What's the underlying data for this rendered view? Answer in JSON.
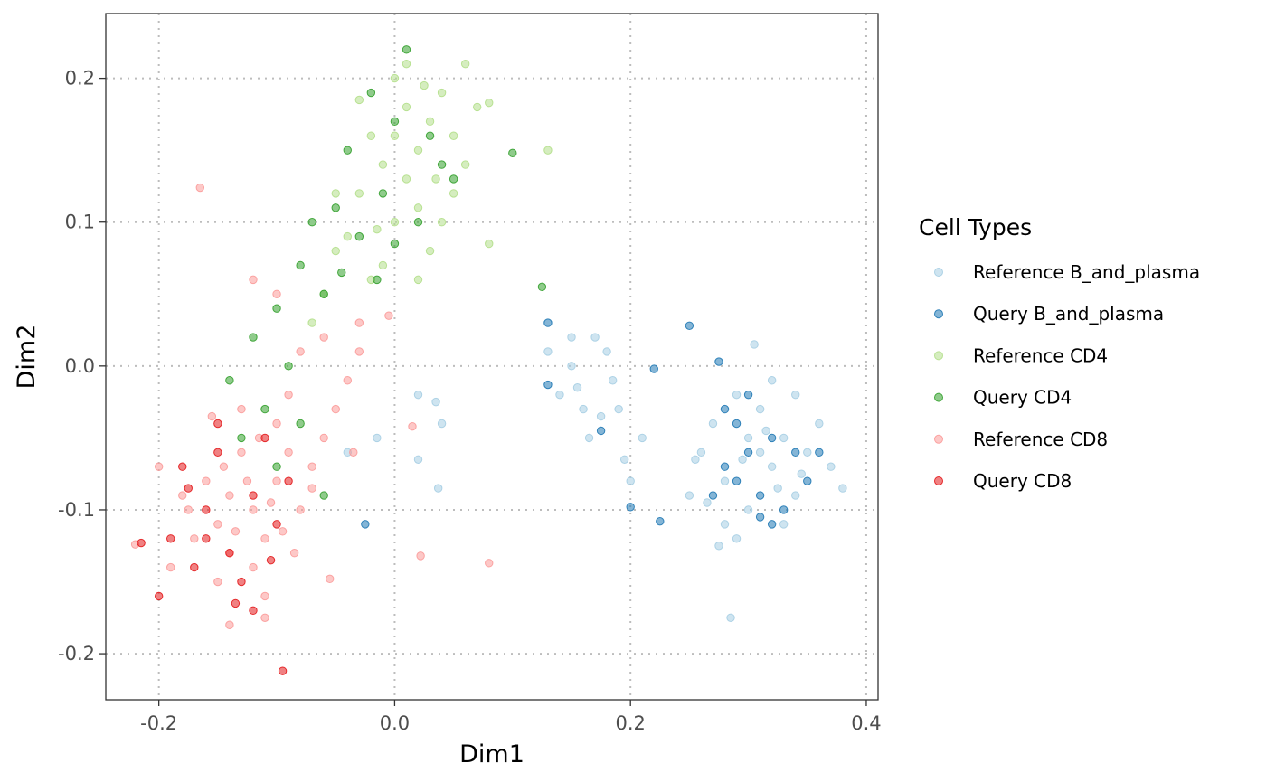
{
  "chart_data": {
    "type": "scatter",
    "title": "",
    "xlabel": "Dim1",
    "ylabel": "Dim2",
    "xlim": [
      -0.245,
      0.41
    ],
    "ylim": [
      -0.232,
      0.245
    ],
    "x_ticks": [
      -0.2,
      0.0,
      0.2,
      0.4
    ],
    "x_tick_labels": [
      "-0.2",
      "0.0",
      "0.2",
      "0.4"
    ],
    "y_ticks": [
      -0.2,
      -0.1,
      0.0,
      0.1,
      0.2
    ],
    "y_tick_labels": [
      "-0.2",
      "-0.1",
      "0.0",
      "0.1",
      "0.2"
    ],
    "grid": true,
    "legend": {
      "title": "Cell Types",
      "position": "right"
    },
    "series": [
      {
        "name": "Reference B_and_plasma",
        "color": "#a6cee3",
        "points": [
          [
            0.29,
            -0.02
          ],
          [
            0.3,
            -0.05
          ],
          [
            0.31,
            -0.06
          ],
          [
            0.32,
            -0.07
          ],
          [
            0.33,
            -0.05
          ],
          [
            0.28,
            -0.08
          ],
          [
            0.34,
            -0.09
          ],
          [
            0.35,
            -0.06
          ],
          [
            0.27,
            -0.04
          ],
          [
            0.3,
            -0.1
          ],
          [
            0.31,
            -0.03
          ],
          [
            0.36,
            -0.04
          ],
          [
            0.26,
            -0.06
          ],
          [
            0.33,
            -0.11
          ],
          [
            0.29,
            -0.12
          ],
          [
            0.37,
            -0.07
          ],
          [
            0.32,
            -0.01
          ],
          [
            0.25,
            -0.09
          ],
          [
            0.34,
            -0.02
          ],
          [
            0.28,
            -0.11
          ],
          [
            0.305,
            0.015
          ],
          [
            0.38,
            -0.085
          ],
          [
            0.285,
            -0.175
          ],
          [
            0.275,
            -0.125
          ],
          [
            0.255,
            -0.065
          ],
          [
            0.315,
            -0.045
          ],
          [
            0.325,
            -0.085
          ],
          [
            0.295,
            -0.065
          ],
          [
            0.345,
            -0.075
          ],
          [
            0.265,
            -0.095
          ],
          [
            0.15,
            0.0
          ],
          [
            0.17,
            0.02
          ],
          [
            0.16,
            -0.03
          ],
          [
            0.19,
            -0.03
          ],
          [
            0.14,
            -0.02
          ],
          [
            0.18,
            0.01
          ],
          [
            0.2,
            -0.08
          ],
          [
            0.21,
            -0.05
          ],
          [
            0.13,
            0.01
          ],
          [
            0.165,
            -0.05
          ],
          [
            0.15,
            0.02
          ],
          [
            0.175,
            -0.035
          ],
          [
            0.185,
            -0.01
          ],
          [
            0.155,
            -0.015
          ],
          [
            0.195,
            -0.065
          ],
          [
            0.02,
            -0.02
          ],
          [
            0.035,
            -0.025
          ],
          [
            0.04,
            -0.04
          ],
          [
            0.02,
            -0.065
          ],
          [
            0.037,
            -0.085
          ],
          [
            -0.015,
            -0.05
          ],
          [
            -0.04,
            -0.06
          ]
        ]
      },
      {
        "name": "Query B_and_plasma",
        "color": "#1f78b4",
        "points": [
          [
            0.3,
            -0.06
          ],
          [
            0.31,
            -0.09
          ],
          [
            0.32,
            -0.05
          ],
          [
            0.29,
            -0.04
          ],
          [
            0.28,
            -0.07
          ],
          [
            0.33,
            -0.1
          ],
          [
            0.35,
            -0.08
          ],
          [
            0.27,
            -0.09
          ],
          [
            0.3,
            -0.02
          ],
          [
            0.34,
            -0.06
          ],
          [
            0.32,
            -0.11
          ],
          [
            0.36,
            -0.06
          ],
          [
            0.28,
            -0.03
          ],
          [
            0.31,
            -0.105
          ],
          [
            0.29,
            -0.08
          ],
          [
            0.13,
            0.03
          ],
          [
            0.25,
            0.028
          ],
          [
            0.22,
            -0.002
          ],
          [
            0.175,
            -0.045
          ],
          [
            0.2,
            -0.098
          ],
          [
            0.225,
            -0.108
          ],
          [
            0.13,
            -0.013
          ],
          [
            -0.025,
            -0.11
          ],
          [
            0.275,
            0.003
          ]
        ]
      },
      {
        "name": "Reference CD4",
        "color": "#b2df8a",
        "points": [
          [
            0.0,
            0.2
          ],
          [
            0.01,
            0.18
          ],
          [
            -0.02,
            0.16
          ],
          [
            0.02,
            0.15
          ],
          [
            -0.01,
            0.14
          ],
          [
            0.03,
            0.17
          ],
          [
            0.04,
            0.19
          ],
          [
            -0.03,
            0.12
          ],
          [
            0.05,
            0.16
          ],
          [
            0.0,
            0.1
          ],
          [
            -0.04,
            0.09
          ],
          [
            0.02,
            0.11
          ],
          [
            0.06,
            0.14
          ],
          [
            -0.05,
            0.08
          ],
          [
            0.01,
            0.13
          ],
          [
            0.07,
            0.18
          ],
          [
            -0.02,
            0.06
          ],
          [
            0.03,
            0.08
          ],
          [
            -0.06,
            0.05
          ],
          [
            0.05,
            0.12
          ],
          [
            0.08,
            0.085
          ],
          [
            0.13,
            0.15
          ],
          [
            0.01,
            0.21
          ],
          [
            -0.07,
            0.03
          ],
          [
            0.02,
            0.06
          ],
          [
            0.04,
            0.1
          ],
          [
            -0.01,
            0.07
          ],
          [
            0.06,
            0.21
          ],
          [
            0.08,
            0.183
          ],
          [
            -0.03,
            0.185
          ],
          [
            -0.05,
            0.12
          ],
          [
            0.0,
            0.16
          ],
          [
            0.035,
            0.13
          ],
          [
            -0.015,
            0.095
          ],
          [
            0.025,
            0.195
          ]
        ]
      },
      {
        "name": "Query CD4",
        "color": "#33a02c",
        "points": [
          [
            0.01,
            0.22
          ],
          [
            -0.02,
            0.19
          ],
          [
            0.0,
            0.17
          ],
          [
            0.03,
            0.16
          ],
          [
            -0.04,
            0.15
          ],
          [
            -0.01,
            0.12
          ],
          [
            0.02,
            0.1
          ],
          [
            -0.05,
            0.11
          ],
          [
            -0.08,
            0.07
          ],
          [
            -0.06,
            0.05
          ],
          [
            -0.1,
            0.04
          ],
          [
            -0.12,
            0.02
          ],
          [
            -0.09,
            0.0
          ],
          [
            -0.14,
            -0.01
          ],
          [
            -0.07,
            0.1
          ],
          [
            -0.03,
            0.09
          ],
          [
            0.05,
            0.13
          ],
          [
            0.1,
            0.148
          ],
          [
            0.125,
            0.055
          ],
          [
            0.04,
            0.14
          ],
          [
            -0.11,
            -0.03
          ],
          [
            -0.13,
            -0.05
          ],
          [
            -0.08,
            -0.04
          ],
          [
            -0.1,
            -0.07
          ],
          [
            -0.06,
            -0.09
          ],
          [
            -0.015,
            0.06
          ],
          [
            -0.045,
            0.065
          ],
          [
            0.0,
            0.085
          ]
        ]
      },
      {
        "name": "Reference CD8",
        "color": "#fb9a99",
        "points": [
          [
            -0.12,
            -0.1
          ],
          [
            -0.1,
            -0.08
          ],
          [
            -0.14,
            -0.09
          ],
          [
            -0.13,
            -0.06
          ],
          [
            -0.11,
            -0.12
          ],
          [
            -0.15,
            -0.11
          ],
          [
            -0.09,
            -0.06
          ],
          [
            -0.16,
            -0.08
          ],
          [
            -0.12,
            -0.14
          ],
          [
            -0.08,
            -0.1
          ],
          [
            -0.1,
            -0.04
          ],
          [
            -0.14,
            -0.13
          ],
          [
            -0.17,
            -0.12
          ],
          [
            -0.07,
            -0.07
          ],
          [
            -0.13,
            -0.03
          ],
          [
            -0.11,
            -0.16
          ],
          [
            -0.06,
            -0.05
          ],
          [
            -0.18,
            -0.09
          ],
          [
            -0.05,
            -0.03
          ],
          [
            -0.15,
            -0.15
          ],
          [
            -0.09,
            -0.02
          ],
          [
            -0.08,
            0.01
          ],
          [
            -0.06,
            0.02
          ],
          [
            -0.04,
            -0.01
          ],
          [
            -0.1,
            0.05
          ],
          [
            -0.12,
            0.06
          ],
          [
            -0.03,
            0.03
          ],
          [
            -0.165,
            0.124
          ],
          [
            -0.22,
            -0.124
          ],
          [
            -0.14,
            -0.18
          ],
          [
            0.022,
            -0.132
          ],
          [
            0.08,
            -0.137
          ],
          [
            0.015,
            -0.042
          ],
          [
            -0.055,
            -0.148
          ],
          [
            -0.035,
            -0.06
          ],
          [
            -0.2,
            -0.07
          ],
          [
            -0.19,
            -0.14
          ],
          [
            -0.11,
            -0.175
          ],
          [
            -0.125,
            -0.08
          ],
          [
            -0.095,
            -0.115
          ],
          [
            -0.155,
            -0.035
          ],
          [
            -0.135,
            -0.115
          ],
          [
            -0.105,
            -0.095
          ],
          [
            -0.085,
            -0.13
          ],
          [
            -0.145,
            -0.07
          ],
          [
            -0.175,
            -0.1
          ],
          [
            -0.115,
            -0.05
          ],
          [
            -0.07,
            -0.085
          ],
          [
            -0.03,
            0.01
          ],
          [
            -0.005,
            0.035
          ]
        ]
      },
      {
        "name": "Query CD8",
        "color": "#e31a1c",
        "points": [
          [
            -0.15,
            -0.06
          ],
          [
            -0.12,
            -0.09
          ],
          [
            -0.18,
            -0.07
          ],
          [
            -0.1,
            -0.11
          ],
          [
            -0.14,
            -0.13
          ],
          [
            -0.16,
            -0.1
          ],
          [
            -0.13,
            -0.15
          ],
          [
            -0.11,
            -0.05
          ],
          [
            -0.17,
            -0.14
          ],
          [
            -0.09,
            -0.08
          ],
          [
            -0.19,
            -0.12
          ],
          [
            -0.2,
            -0.16
          ],
          [
            -0.15,
            -0.04
          ],
          [
            -0.12,
            -0.17
          ],
          [
            -0.095,
            -0.212
          ],
          [
            -0.215,
            -0.123
          ],
          [
            -0.175,
            -0.085
          ],
          [
            -0.135,
            -0.165
          ],
          [
            -0.16,
            -0.12
          ],
          [
            -0.105,
            -0.135
          ]
        ]
      }
    ]
  }
}
